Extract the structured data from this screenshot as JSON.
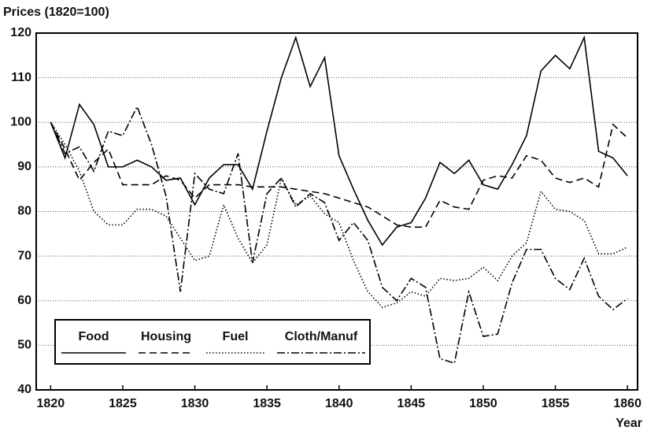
{
  "chart_data": {
    "type": "line",
    "y_label": "Prices (1820=100)",
    "x_label": "Year",
    "x": [
      1820,
      1821,
      1822,
      1823,
      1824,
      1825,
      1826,
      1827,
      1828,
      1829,
      1830,
      1831,
      1832,
      1833,
      1834,
      1835,
      1836,
      1837,
      1838,
      1839,
      1840,
      1841,
      1842,
      1843,
      1844,
      1845,
      1846,
      1847,
      1848,
      1849,
      1850,
      1851,
      1852,
      1853,
      1854,
      1855,
      1856,
      1857,
      1858,
      1859,
      1860
    ],
    "series": [
      {
        "name": "Food",
        "color": "#000000",
        "style": "solid",
        "values": [
          100,
          92,
          104,
          99.5,
          90,
          90,
          91.5,
          90,
          87,
          87.5,
          81.5,
          87.5,
          90.5,
          90.5,
          85,
          98,
          110,
          119,
          108,
          114.5,
          92.5,
          85,
          78,
          72.5,
          76.5,
          77.5,
          83,
          91,
          88.5,
          91.5,
          86,
          85,
          90.5,
          97,
          111.5,
          115,
          112,
          119,
          93.5,
          92,
          88
        ]
      },
      {
        "name": "Housing",
        "color": "#000000",
        "style": "dashed",
        "values": [
          100,
          94,
          87,
          91,
          94,
          86,
          86,
          86,
          88,
          87,
          83,
          86,
          86,
          86,
          85.5,
          85.5,
          85.5,
          85,
          84.5,
          84,
          83,
          82,
          81,
          79,
          77,
          76.5,
          76.5,
          82.5,
          81,
          80.5,
          87,
          88,
          87.5,
          92.5,
          91.5,
          87.5,
          86.5,
          87.5,
          85.5,
          99.5,
          96.5
        ]
      },
      {
        "name": "Fuel",
        "color": "#000000",
        "style": "dotted",
        "values": [
          100,
          95,
          89,
          80,
          77,
          77,
          80.5,
          80.5,
          79,
          74,
          69,
          70,
          81.5,
          74,
          68.5,
          72.5,
          87.5,
          81.5,
          83.5,
          79.5,
          77.5,
          69,
          62,
          58.5,
          59.5,
          62,
          61,
          65,
          64.5,
          65,
          67.5,
          64.5,
          70,
          73,
          84.5,
          80.5,
          80,
          78,
          70.5,
          70.5,
          72
        ]
      },
      {
        "name": "Cloth/Manuf",
        "color": "#000000",
        "style": "dashdot",
        "values": [
          100,
          93,
          94.5,
          89,
          98,
          97,
          103.5,
          95,
          83.5,
          62,
          88.5,
          85,
          84,
          93,
          68.5,
          84,
          87.5,
          81,
          84,
          82,
          73.5,
          77.5,
          73.5,
          63,
          60,
          65,
          63,
          47,
          46,
          62,
          52,
          52.5,
          64,
          71.5,
          71.5,
          65,
          62.5,
          69.5,
          61,
          58,
          60.5
        ]
      }
    ],
    "xlim": [
      1819,
      1860.7
    ],
    "xticks": [
      1820,
      1825,
      1830,
      1835,
      1840,
      1845,
      1850,
      1855,
      1860
    ],
    "ylim": [
      40,
      120
    ],
    "yticks": [
      40,
      50,
      60,
      70,
      80,
      90,
      100,
      110,
      120
    ],
    "grid": true,
    "legend": "lower left"
  }
}
